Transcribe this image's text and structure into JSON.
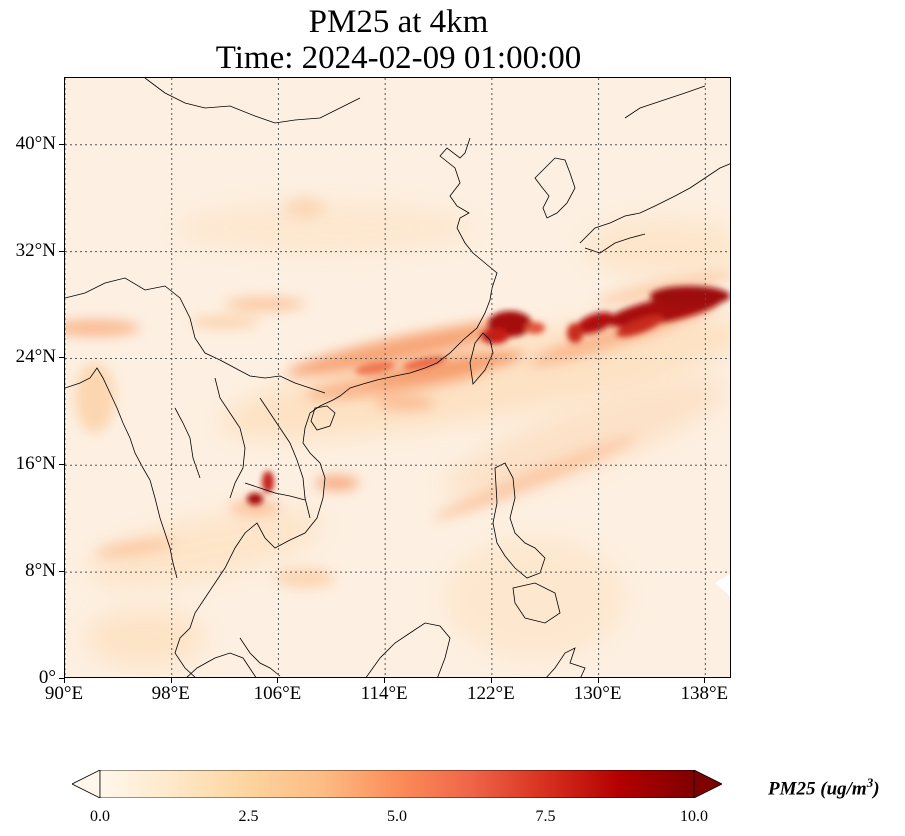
{
  "title": {
    "line1": "PM25 at 4km",
    "line2": "Time: 2024-02-09 01:00:00"
  },
  "map": {
    "variable": "PM25",
    "level": "4km",
    "time": "2024-02-09 01:00:00",
    "lon_range": [
      90,
      140
    ],
    "lat_range": [
      0,
      45
    ],
    "gridlines": "dotted",
    "lat_ticks": [
      {
        "value": 0,
        "label": "0°"
      },
      {
        "value": 8,
        "label": "8°N"
      },
      {
        "value": 16,
        "label": "16°N"
      },
      {
        "value": 24,
        "label": "24°N"
      },
      {
        "value": 32,
        "label": "32°N"
      },
      {
        "value": 40,
        "label": "40°N"
      }
    ],
    "lon_ticks": [
      {
        "value": 90,
        "label": "90°E"
      },
      {
        "value": 98,
        "label": "98°E"
      },
      {
        "value": 106,
        "label": "106°E"
      },
      {
        "value": 114,
        "label": "114°E"
      },
      {
        "value": 122,
        "label": "122°E"
      },
      {
        "value": 130,
        "label": "130°E"
      },
      {
        "value": 138,
        "label": "138°E"
      }
    ],
    "coastline_color": "#000000",
    "background_color": "#fdf0e2"
  },
  "colorbar": {
    "colormap": "OrRd",
    "min": 0.0,
    "max": 10.0,
    "extend": "both",
    "ticks": [
      {
        "value": 0,
        "label": "0.0"
      },
      {
        "value": 2.5,
        "label": "2.5"
      },
      {
        "value": 5,
        "label": "5.0"
      },
      {
        "value": 7.5,
        "label": "7.5"
      },
      {
        "value": 10,
        "label": "10.0"
      }
    ],
    "label": "PM25 (ug/m3)",
    "label_main": "PM25 (ug/m",
    "label_sup": "3",
    "label_end": ")",
    "colors": [
      "#fff7ec",
      "#fee8c8",
      "#fdd49e",
      "#fdbb84",
      "#fc8d59",
      "#ef6548",
      "#d7301f",
      "#b30000",
      "#7f0000"
    ]
  }
}
